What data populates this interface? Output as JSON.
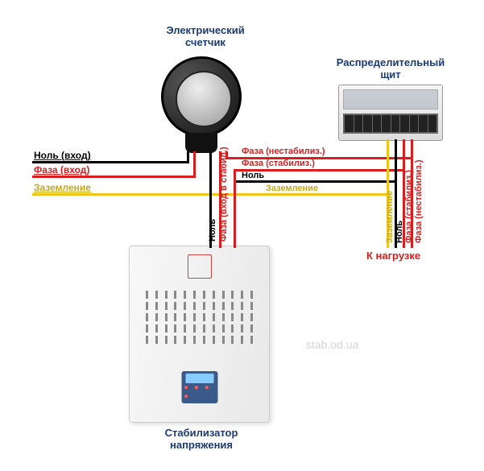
{
  "titles": {
    "meter": "Электрический\nсчетчик",
    "panel": "Распределительный\nщит",
    "stabilizer": "Стабилизатор\nнапряжения",
    "load": "К нагрузке"
  },
  "labels_left": {
    "null_in": "Ноль (вход)",
    "phase_in": "Фаза (вход)",
    "ground": "Заземление"
  },
  "labels_mid_v": {
    "null": "Ноль",
    "phase_in_stab": "Фаза (вход в стабил.)"
  },
  "labels_mid_h": {
    "phase_unstab": "Фаза (нестабилиз.)",
    "phase_stab": "Фаза (стабилиз.)",
    "null": "Ноль",
    "ground": "Заземление"
  },
  "labels_right_v": {
    "ground": "Заземление",
    "null": "Ноль",
    "phase_stab": "Фаза (стабилиз.)",
    "phase_unstab": "Фаза (нестабилиз.)"
  },
  "colors": {
    "null": "#000000",
    "phase": "#d81e1e",
    "ground": "#f0c418",
    "title": "#1a3a7a",
    "ground_text": "#c9a812"
  },
  "watermark": "stab.od.ua"
}
